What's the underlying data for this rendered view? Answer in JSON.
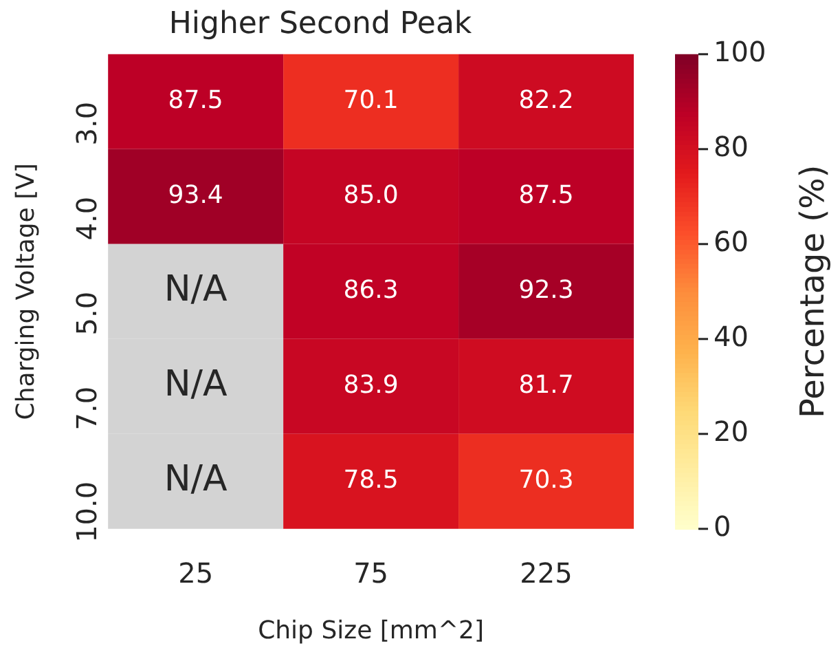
{
  "chart_data": {
    "type": "heatmap",
    "title": "Higher Second Peak",
    "xlabel": "Chip Size [mm^2]",
    "ylabel": "Charging Voltage [V]",
    "clabel": "Percentage (%)",
    "categories": [
      "25",
      "75",
      "225"
    ],
    "y_categories": [
      "3.0",
      "4.0",
      "5.0",
      "7.0",
      "10.0"
    ],
    "cells": [
      [
        87.5,
        70.1,
        82.2
      ],
      [
        93.4,
        85.0,
        87.5
      ],
      [
        null,
        86.3,
        92.3
      ],
      [
        null,
        83.9,
        81.7
      ],
      [
        null,
        78.5,
        70.3
      ]
    ],
    "cell_labels": [
      [
        "87.5",
        "70.1",
        "82.2"
      ],
      [
        "93.4",
        "85.0",
        "87.5"
      ],
      [
        "N/A",
        "86.3",
        "92.3"
      ],
      [
        "N/A",
        "83.9",
        "81.7"
      ],
      [
        "N/A",
        "78.5",
        "70.3"
      ]
    ],
    "clim": [
      0,
      100
    ],
    "cticks": [
      0,
      20,
      40,
      60,
      80,
      100
    ]
  }
}
